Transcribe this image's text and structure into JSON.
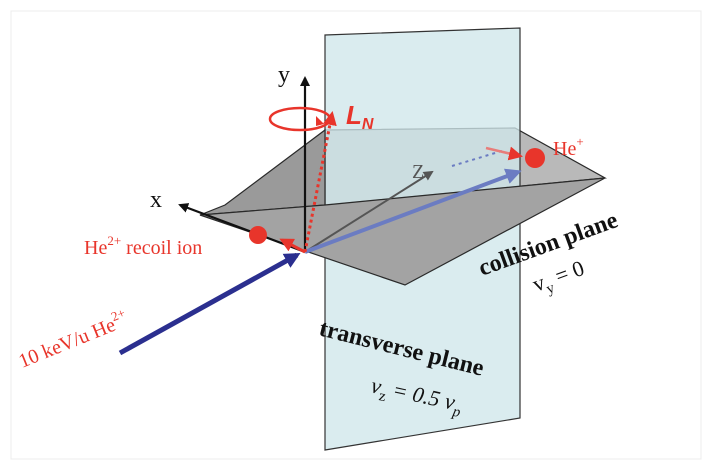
{
  "axes": {
    "x_label": "x",
    "y_label": "y",
    "z_label": "Z"
  },
  "angular_momentum": {
    "letter": "L",
    "subscript": "N"
  },
  "scattered_ion": {
    "base": "He",
    "charge": "+"
  },
  "recoil_ion": {
    "base": "He",
    "charge": "2+",
    "suffix": " recoil ion"
  },
  "projectile": {
    "prefix": "10 keV/u He",
    "charge": "2+"
  },
  "collision_plane": {
    "title": "collision plane",
    "velocity": {
      "symbol": "v",
      "subscript": "y",
      "equation": " = 0"
    }
  },
  "transverse_plane": {
    "title": "transverse plane",
    "velocity": {
      "symbol": "v",
      "subscript": "z",
      "mid": " = 0.5 ",
      "symbol2": "v",
      "subscript2": "p"
    }
  },
  "colors": {
    "red": "#e8352b",
    "blue_arrow": "#2b2f8f",
    "transverse_fill": "#cfe7ea",
    "collision_fill": "#a3a3a3",
    "axis": "#111111"
  }
}
